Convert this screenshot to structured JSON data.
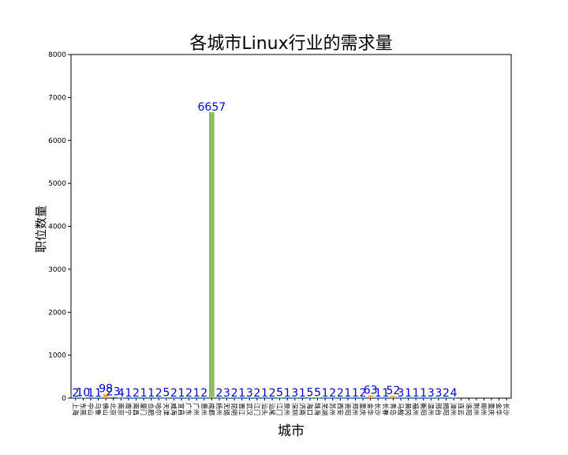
{
  "chart_data": {
    "type": "bar",
    "title": "各城市Linux行业的需求量",
    "xlabel": "城市",
    "ylabel": "职位数量",
    "ylim": [
      0,
      8000
    ],
    "yticks": [
      0,
      1000,
      2000,
      3000,
      4000,
      5000,
      6000,
      7000,
      8000
    ],
    "grid": false,
    "categories": [
      "上海",
      "东莞",
      "中山",
      "乌鲁",
      "佛山",
      "北京",
      "南京",
      "南宁",
      "南昌",
      "厦门",
      "合肥",
      "哈尔",
      "天津",
      "威海",
      "宜昌",
      "广东",
      "广州",
      "惠州",
      "成都",
      "扬州",
      "无锡",
      "昆明",
      "晋江",
      "武汉",
      "江门",
      "汕头",
      "汕尾",
      "江门",
      "泉州",
      "深圳",
      "济南",
      "海口",
      "珠海",
      "芜湖",
      "苏州",
      "西安",
      "贵阳",
      "郑州",
      "重庆",
      "金华",
      "长沙",
      "长春",
      "青岛",
      "马鞍",
      "黄冈",
      "福州",
      "衡阳",
      "温州",
      "邢台",
      "揭阳",
      "漳州",
      "连云",
      "洛阳",
      "荆州",
      "柳州",
      "重庆",
      "金华",
      "长沙"
    ],
    "values": [
      2,
      10,
      1,
      1,
      98,
      23,
      4,
      1,
      2,
      1,
      1,
      2,
      5,
      2,
      1,
      2,
      1,
      2,
      6657,
      2,
      3,
      2,
      1,
      3,
      2,
      1,
      2,
      5,
      1,
      3,
      1,
      5,
      5,
      1,
      2,
      2,
      1,
      1,
      2,
      63,
      1,
      1,
      52,
      3,
      1,
      1,
      1,
      3,
      3,
      2,
      4,
      0,
      0,
      0,
      0,
      0,
      0,
      0
    ],
    "label_text": [
      "2",
      "10",
      "1",
      "1",
      "98",
      "23",
      "4",
      "1",
      "2",
      "1",
      "1",
      "2",
      "5",
      "2",
      "1",
      "2",
      "1",
      "2",
      "6657",
      "2",
      "3",
      "2",
      "1",
      "3",
      "2",
      "1",
      "2",
      "5",
      "1",
      "3",
      "1",
      "5",
      "5",
      "1",
      "2",
      "2",
      "1",
      "1",
      "2",
      "63",
      "1",
      "1",
      "52",
      "3",
      "1",
      "1",
      "1",
      "3",
      "3",
      "2",
      "4",
      "",
      "",
      "",
      "",
      "",
      "",
      ""
    ],
    "colors": {
      "default": "#1f77b4",
      "highlight_large": "#8fbc62",
      "highlight_mid": "#f4a460",
      "label": "#0000cc"
    }
  }
}
